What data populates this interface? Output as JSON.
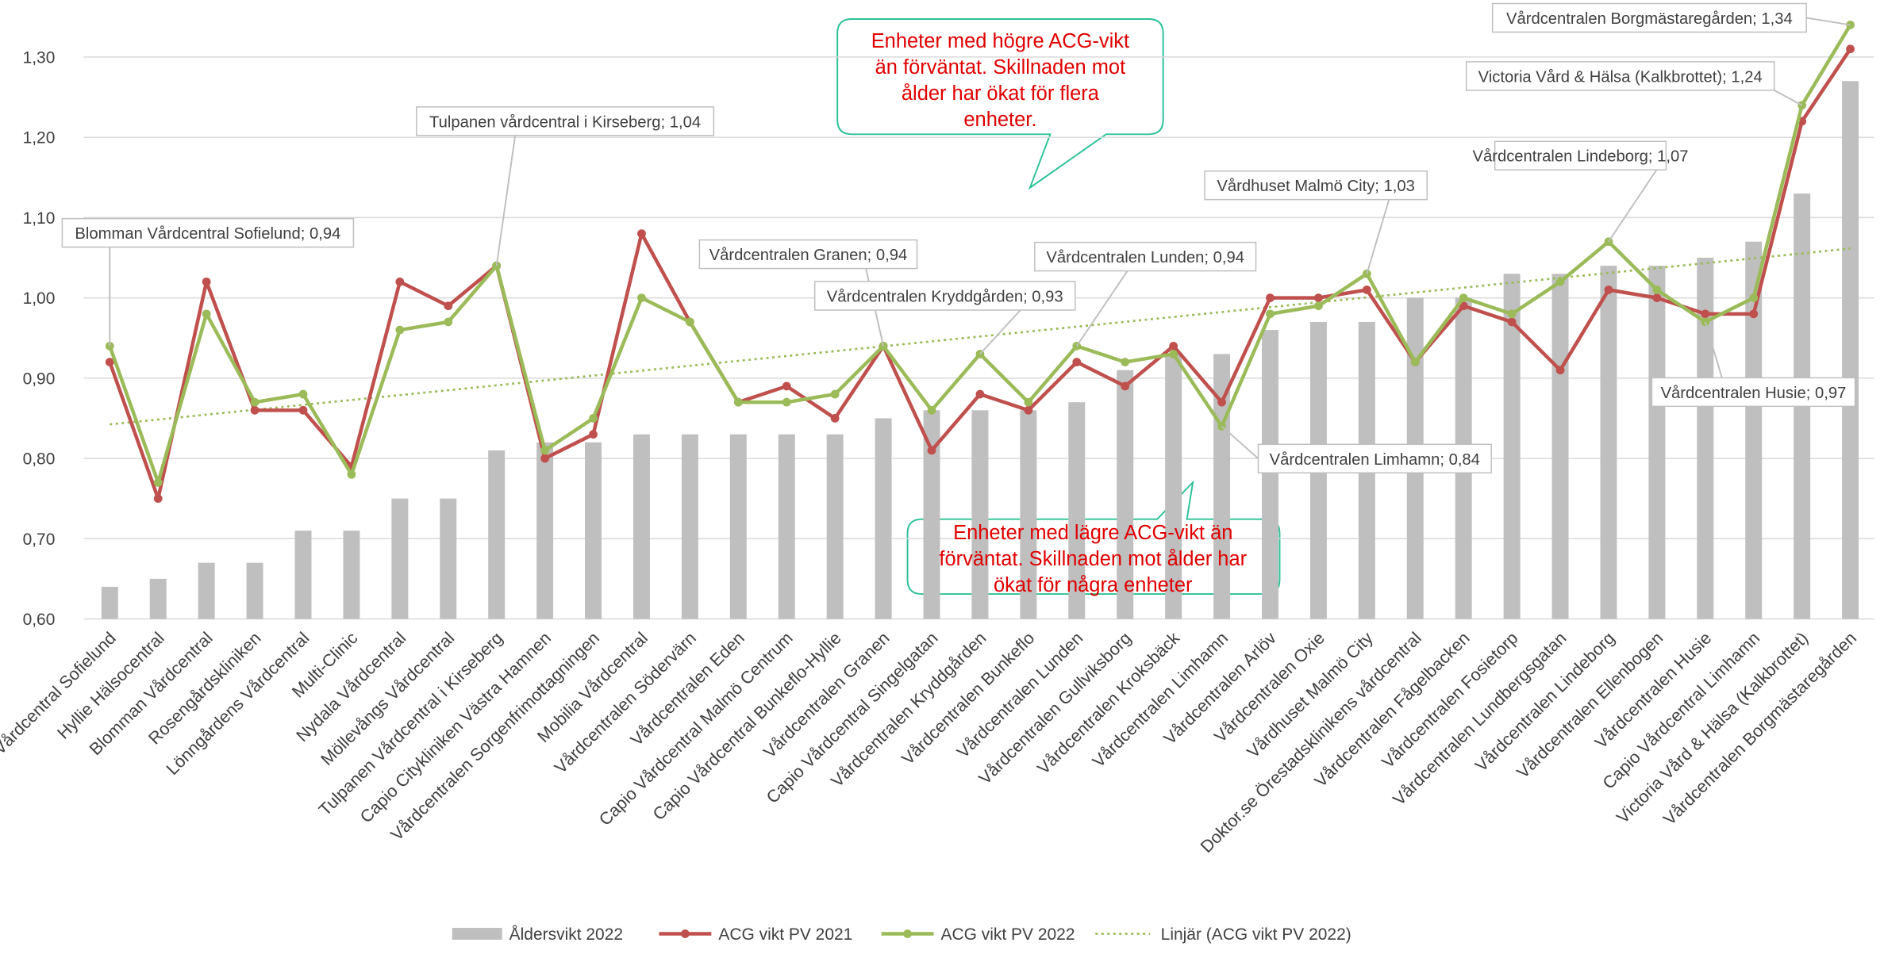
{
  "chart_data": {
    "type": "combo",
    "categories": [
      "Vårdcentral Sofielund",
      "Hyllie Hälsocentral",
      "Blomman Vårdcentral",
      "Rosengårdskliniken",
      "Lönngårdens Vårdcentral",
      "Multi-Clinic",
      "Nydala Vårdcentral",
      "Möllevångs Vårdcentral",
      "Tulpanen Vårdcentral i Kirseberg",
      "Capio Citykliniken Västra Hamnen",
      "Vårdcentralen Sorgenfrimottagningen",
      "Mobilia Vårdcentral",
      "Vårdcentralen Södervärn",
      "Vårdcentralen Eden",
      "Capio Vårdcentral Malmö Centrum",
      "Capio Vårdcentral Bunkeflo-Hyllie",
      "Vårdcentralen Granen",
      "Capio Vårdcentral Singelgatan",
      "Vårdcentralen Kryddgården",
      "Vårdcentralen Bunkeflo",
      "Vårdcentralen Lunden",
      "Vårdcentralen Gullviksborg",
      "Vårdcentralen Kroksbäck",
      "Vårdcentralen Limhamn",
      "Vårdcentralen Arlöv",
      "Vårdcentralen Oxie",
      "Vårdhuset Malmö City",
      "Doktor.se Örestadsklinikens vårdcentral",
      "Vårdcentralen Fågelbacken",
      "Vårdcentralen Fosietorp",
      "Vårdcentralen Lundbergsgatan",
      "Vårdcentralen Lindeborg",
      "Vårdcentralen Ellenbogen",
      "Vårdcentralen Husie",
      "Capio Vårdcentral Limhamn",
      "Victoria Vård & Hälsa (Kalkbrottet)",
      "Vårdcentralen Borgmästaregården"
    ],
    "series": [
      {
        "name": "Åldersvikt 2022",
        "type": "bar",
        "color": "#bfbfbf",
        "values": [
          0.64,
          0.65,
          0.67,
          0.67,
          0.71,
          0.71,
          0.75,
          0.75,
          0.81,
          0.82,
          0.82,
          0.83,
          0.83,
          0.83,
          0.83,
          0.83,
          0.85,
          0.86,
          0.86,
          0.86,
          0.87,
          0.91,
          0.93,
          0.93,
          0.96,
          0.97,
          0.97,
          1.0,
          1.0,
          1.03,
          1.03,
          1.04,
          1.04,
          1.05,
          1.07,
          1.13,
          1.27
        ]
      },
      {
        "name": "ACG vikt PV 2021",
        "type": "line",
        "color": "#c0504d",
        "values": [
          0.92,
          0.75,
          1.02,
          0.86,
          0.86,
          0.79,
          1.02,
          0.99,
          1.04,
          0.8,
          0.83,
          1.08,
          0.97,
          0.87,
          0.89,
          0.85,
          0.94,
          0.81,
          0.88,
          0.86,
          0.92,
          0.89,
          0.94,
          0.87,
          1.0,
          1.0,
          1.01,
          0.92,
          0.99,
          0.97,
          0.91,
          1.01,
          1.0,
          0.98,
          0.98,
          1.22,
          1.31
        ]
      },
      {
        "name": "ACG vikt PV 2022",
        "type": "line",
        "color": "#9bbb59",
        "values": [
          0.94,
          0.77,
          0.98,
          0.87,
          0.88,
          0.78,
          0.96,
          0.97,
          1.04,
          0.81,
          0.85,
          1.0,
          0.97,
          0.87,
          0.87,
          0.88,
          0.94,
          0.86,
          0.93,
          0.87,
          0.94,
          0.92,
          0.93,
          0.84,
          0.98,
          0.99,
          1.03,
          0.92,
          1.0,
          0.98,
          1.02,
          1.07,
          1.01,
          0.97,
          1.0,
          1.24,
          1.34
        ]
      }
    ],
    "trendline": {
      "name": "Linjär (ACG vikt PV 2022)",
      "color": "#9bbb59",
      "of_series": 2
    },
    "ylim": [
      0.6,
      1.37
    ],
    "yticks": [
      {
        "value": 0.6,
        "label": "0,60"
      },
      {
        "value": 0.7,
        "label": "0,70"
      },
      {
        "value": 0.8,
        "label": "0,80"
      },
      {
        "value": 0.9,
        "label": "0,90"
      },
      {
        "value": 1.0,
        "label": "1,00"
      },
      {
        "value": 1.1,
        "label": "1,10"
      },
      {
        "value": 1.2,
        "label": "1,20"
      },
      {
        "value": 1.3,
        "label": "1,30"
      }
    ],
    "grid": true,
    "legend": "bottom",
    "annotations": [
      "Blomman Vårdcentral Sofielund; 0,94",
      "Tulpanen vårdcentral i Kirseberg; 1,04",
      "Vårdcentralen Granen; 0,94",
      "Vårdcentralen Kryddgården; 0,93",
      "Vårdcentralen Lunden; 0,94",
      "Vårdhuset Malmö City; 1,03",
      "Vårdcentralen Lindeborg; 1,07",
      "Vårdcentralen Borgmästaregården; 1,34",
      "Victoria Vård & Hälsa (Kalkbrottet); 1,24",
      "Vårdcentralen Husie; 0,97",
      "Vårdcentralen Limhamn; 0,84"
    ],
    "callouts": [
      [
        "Enheter med högre ACG-vikt",
        "än förväntat. Skillnaden mot",
        "ålder har ökat för flera",
        "enheter."
      ],
      [
        "Enheter med lägre ACG-vikt än",
        "förväntat. Skillnaden mot ålder har",
        "ökat för några enheter"
      ]
    ]
  }
}
